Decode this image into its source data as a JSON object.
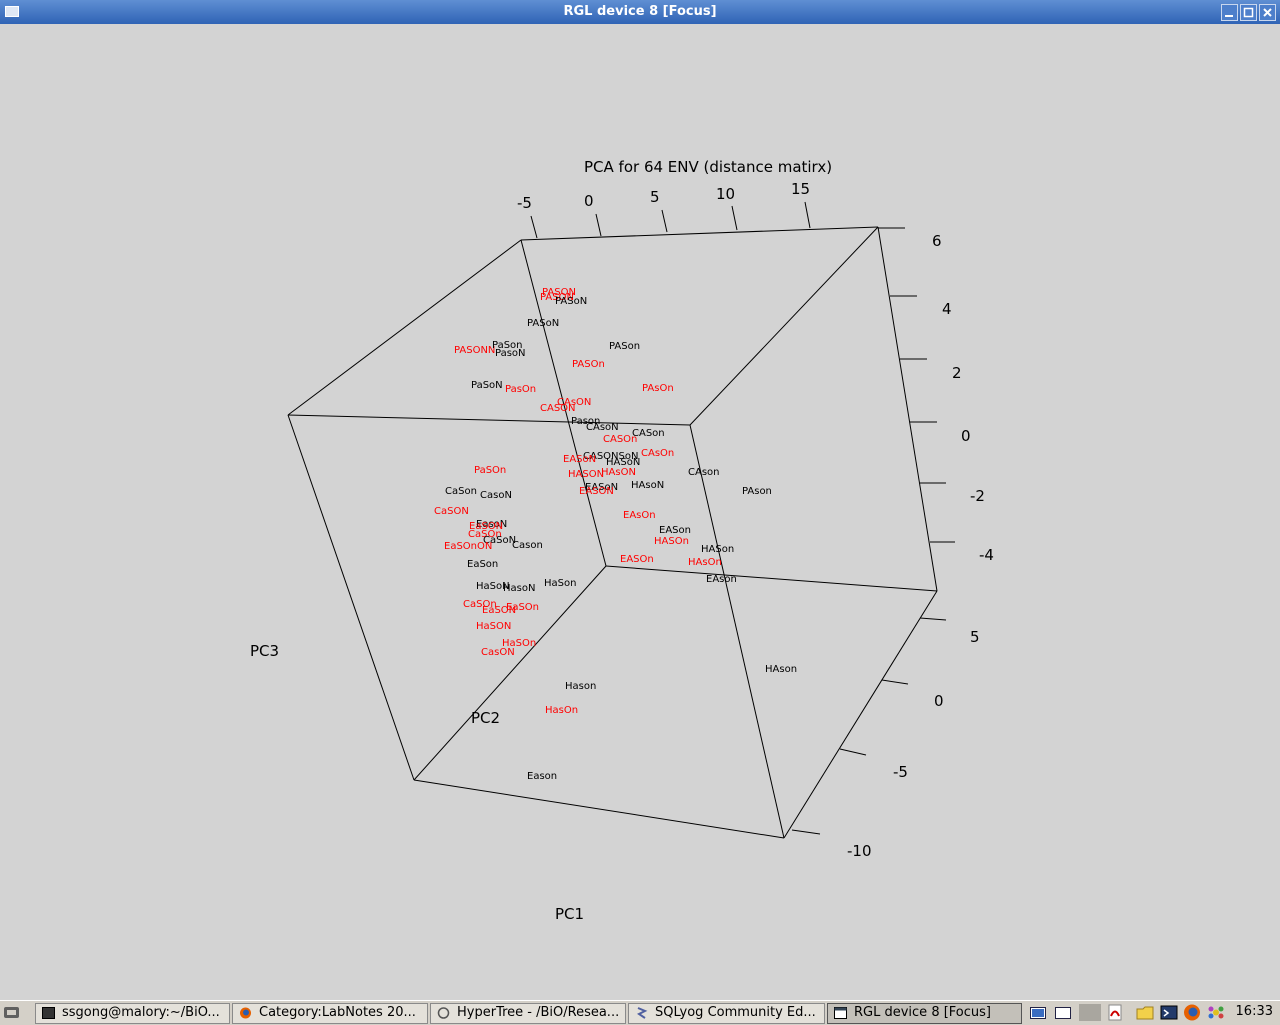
{
  "window": {
    "title": "RGL device 8 [Focus]"
  },
  "plot": {
    "title": "PCA for 64 ENV (distance matirx)",
    "axis_labels": {
      "pc1": "PC1",
      "pc2": "PC2",
      "pc3": "PC3"
    },
    "pc1_ticks": [
      "-5",
      "0",
      "5",
      "10",
      "15"
    ],
    "pc3_ticks": [
      "6",
      "4",
      "2",
      "0",
      "-2",
      "-4"
    ],
    "pc2_ticks": [
      "5",
      "0",
      "-5",
      "-10"
    ],
    "colors": {
      "black": "#000000",
      "red": "#ff0000"
    },
    "points": [
      {
        "label": "PASON",
        "color": "red"
      },
      {
        "label": "PASON",
        "color": "red"
      },
      {
        "label": "PASoN",
        "color": "black"
      },
      {
        "label": "PASoN",
        "color": "black"
      },
      {
        "label": "PASONN",
        "color": "red"
      },
      {
        "label": "PaSon",
        "color": "black"
      },
      {
        "label": "PasoN",
        "color": "black"
      },
      {
        "label": "PASon",
        "color": "black"
      },
      {
        "label": "PASOn",
        "color": "red"
      },
      {
        "label": "PaSoN",
        "color": "black"
      },
      {
        "label": "PasOn",
        "color": "red"
      },
      {
        "label": "PAsOn",
        "color": "red"
      },
      {
        "label": "CAsON",
        "color": "red"
      },
      {
        "label": "CASON",
        "color": "red"
      },
      {
        "label": "Pason",
        "color": "black"
      },
      {
        "label": "CAsoN",
        "color": "black"
      },
      {
        "label": "CASon",
        "color": "black"
      },
      {
        "label": "CASOn",
        "color": "red"
      },
      {
        "label": "CAsOn",
        "color": "red"
      },
      {
        "label": "CASONSoN",
        "color": "black"
      },
      {
        "label": "HASoN",
        "color": "black"
      },
      {
        "label": "EASoN",
        "color": "red"
      },
      {
        "label": "HASON",
        "color": "red"
      },
      {
        "label": "HAsON",
        "color": "red"
      },
      {
        "label": "CAson",
        "color": "black"
      },
      {
        "label": "EASoN",
        "color": "black"
      },
      {
        "label": "EASON",
        "color": "red"
      },
      {
        "label": "HAsoN",
        "color": "black"
      },
      {
        "label": "PAson",
        "color": "black"
      },
      {
        "label": "PaSOn",
        "color": "red"
      },
      {
        "label": "CaSon",
        "color": "black"
      },
      {
        "label": "CasoN",
        "color": "black"
      },
      {
        "label": "CaSON",
        "color": "red"
      },
      {
        "label": "EAsOn",
        "color": "red"
      },
      {
        "label": "EasoN",
        "color": "black"
      },
      {
        "label": "EASon",
        "color": "black"
      },
      {
        "label": "EaSON",
        "color": "red"
      },
      {
        "label": "CaSOn",
        "color": "red"
      },
      {
        "label": "CaSoN",
        "color": "black"
      },
      {
        "label": "HASOn",
        "color": "red"
      },
      {
        "label": "Cason",
        "color": "black"
      },
      {
        "label": "EaSOnON",
        "color": "red"
      },
      {
        "label": "HASon",
        "color": "black"
      },
      {
        "label": "EASOn",
        "color": "red"
      },
      {
        "label": "HAsOn",
        "color": "red"
      },
      {
        "label": "EaSon",
        "color": "black"
      },
      {
        "label": "EAson",
        "color": "black"
      },
      {
        "label": "HaSoN",
        "color": "black"
      },
      {
        "label": "HasoN",
        "color": "black"
      },
      {
        "label": "HaSon",
        "color": "black"
      },
      {
        "label": "CaSOn",
        "color": "red"
      },
      {
        "label": "EaSON",
        "color": "red"
      },
      {
        "label": "EaSOn",
        "color": "red"
      },
      {
        "label": "HaSON",
        "color": "red"
      },
      {
        "label": "HaSOn",
        "color": "red"
      },
      {
        "label": "CasON",
        "color": "red"
      },
      {
        "label": "HAson",
        "color": "black"
      },
      {
        "label": "Hason",
        "color": "black"
      },
      {
        "label": "HasOn",
        "color": "red"
      },
      {
        "label": "Eason",
        "color": "black"
      }
    ]
  },
  "taskbar": {
    "tasks": [
      {
        "label": "ssgong@malory:~/BiO..."
      },
      {
        "label": "Category:LabNotes 20..."
      },
      {
        "label": "HyperTree - /BiO/Resea..."
      },
      {
        "label": "SQLyog Community Ed..."
      },
      {
        "label": "RGL device 8 [Focus]"
      }
    ],
    "clock": "16:33"
  }
}
